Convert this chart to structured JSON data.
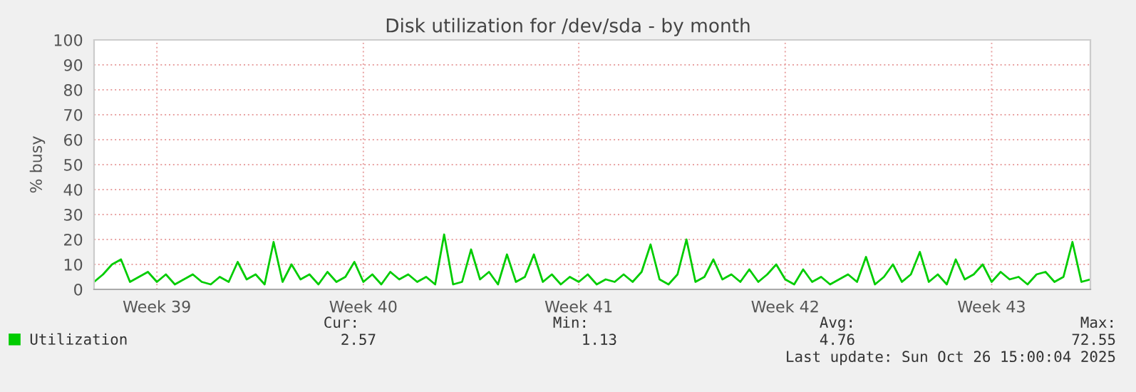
{
  "chart_data": {
    "type": "line",
    "title": "Disk utilization for /dev/sda - by month",
    "ylabel": "% busy",
    "categories": [
      null,
      null,
      null,
      null,
      null,
      null,
      null,
      "Week 39",
      null,
      null,
      null,
      null,
      null,
      null,
      null,
      null,
      null,
      null,
      null,
      null,
      null,
      null,
      null,
      null,
      null,
      null,
      null,
      null,
      null,
      null,
      "Week 40",
      null,
      null,
      null,
      null,
      null,
      null,
      null,
      null,
      null,
      null,
      null,
      null,
      null,
      null,
      null,
      null,
      null,
      null,
      null,
      null,
      null,
      null,
      null,
      "Week 41",
      null,
      null,
      null,
      null,
      null,
      null,
      null,
      null,
      null,
      null,
      null,
      null,
      null,
      null,
      null,
      null,
      null,
      null,
      null,
      null,
      null,
      null,
      "Week 42",
      null,
      null,
      null,
      null,
      null,
      null,
      null,
      null,
      null,
      null,
      null,
      null,
      null,
      null,
      null,
      null,
      null,
      null,
      null,
      null,
      null,
      null,
      "Week 43",
      null,
      null,
      null,
      null,
      null,
      null,
      null,
      null,
      null,
      null,
      null
    ],
    "series": [
      {
        "name": "Utilization",
        "color": "#00cc00",
        "values": [
          3,
          6,
          10,
          12,
          3,
          5,
          7,
          3,
          6,
          2,
          4,
          6,
          3,
          2,
          5,
          3,
          11,
          4,
          6,
          2,
          19,
          3,
          10,
          4,
          6,
          2,
          7,
          3,
          5,
          11,
          3,
          6,
          2,
          7,
          4,
          6,
          3,
          5,
          2,
          22,
          2,
          3,
          16,
          4,
          7,
          2,
          14,
          3,
          5,
          14,
          3,
          6,
          2,
          5,
          3,
          6,
          2,
          4,
          3,
          6,
          3,
          7,
          18,
          4,
          2,
          6,
          20,
          3,
          5,
          12,
          4,
          6,
          3,
          8,
          3,
          6,
          10,
          4,
          2,
          8,
          3,
          5,
          2,
          4,
          6,
          3,
          13,
          2,
          5,
          10,
          3,
          6,
          15,
          3,
          6,
          2,
          12,
          4,
          6,
          10,
          3,
          7,
          4,
          5,
          2,
          6,
          7,
          3,
          5,
          19,
          3,
          4
        ]
      }
    ],
    "ylim": [
      0,
      100
    ],
    "yticks": [
      0,
      10,
      20,
      30,
      40,
      50,
      60,
      70,
      80,
      90,
      100
    ],
    "grid": true,
    "legend": "bottom left",
    "marker": "none",
    "line_style": "solid",
    "annotations": [
      "Cur:",
      "2.57",
      "Min:",
      "1.13",
      "Avg:",
      "4.76",
      "Max:",
      "72.55",
      "Last update: Sun Oct 26 15:00:04 2025"
    ]
  }
}
